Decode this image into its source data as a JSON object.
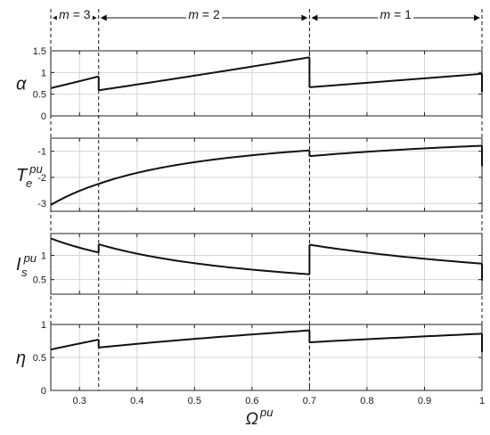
{
  "chart_data": [
    {
      "type": "line",
      "ylabel": "α",
      "xlim": [
        0.25,
        1.0
      ],
      "ylim": [
        0,
        1.5
      ],
      "yticks": [
        0,
        0.5,
        1,
        1.5
      ],
      "ytick_labels": [
        "0",
        "0.5",
        "1",
        "1.5"
      ],
      "grid": true,
      "segments": [
        {
          "x": [
            0.25,
            0.3333
          ],
          "y": [
            0.64,
            0.91
          ]
        },
        {
          "x": [
            0.3333,
            0.7
          ],
          "y": [
            0.59,
            1.35
          ]
        },
        {
          "x": [
            0.7,
            1.0
          ],
          "y": [
            0.66,
            0.97
          ]
        }
      ]
    },
    {
      "type": "line",
      "ylabel": "T",
      "ylabel_sub": "e",
      "ylabel_sup": "pu",
      "xlim": [
        0.25,
        1.0
      ],
      "ylim": [
        -3.3,
        -0.5
      ],
      "yticks": [
        -3,
        -2,
        -1
      ],
      "ytick_labels": [
        "-3",
        "-2",
        "-1"
      ],
      "grid": true,
      "segments": [
        {
          "x": [
            0.25,
            0.3333
          ],
          "y": [
            -3.06,
            -2.25
          ]
        },
        {
          "x": [
            0.3333,
            0.7
          ],
          "y": [
            -2.25,
            -0.97
          ]
        },
        {
          "x": [
            0.7,
            1.0
          ],
          "y": [
            -1.19,
            -0.79
          ]
        }
      ]
    },
    {
      "type": "line",
      "ylabel": "I",
      "ylabel_sub": "s",
      "ylabel_sup": "pu",
      "xlim": [
        0.25,
        1.0
      ],
      "ylim": [
        0.2,
        1.45
      ],
      "yticks": [
        0.5,
        1
      ],
      "ytick_labels": [
        "0.5",
        "1"
      ],
      "grid": true,
      "segments": [
        {
          "x": [
            0.25,
            0.3333
          ],
          "y": [
            1.35,
            1.06
          ]
        },
        {
          "x": [
            0.3333,
            0.7
          ],
          "y": [
            1.23,
            0.61
          ]
        },
        {
          "x": [
            0.7,
            1.0
          ],
          "y": [
            1.22,
            0.83
          ]
        }
      ]
    },
    {
      "type": "line",
      "ylabel": "η",
      "xlim": [
        0.25,
        1.0
      ],
      "ylim": [
        0,
        1.0
      ],
      "yticks": [
        0,
        0.5,
        1
      ],
      "ytick_labels": [
        "0",
        "0.5",
        "1"
      ],
      "xticks": [
        0.3,
        0.4,
        0.5,
        0.6,
        0.7,
        0.8,
        0.9,
        1
      ],
      "xtick_labels": [
        "0.3",
        "0.4",
        "0.5",
        "0.6",
        "0.7",
        "0.8",
        "0.9",
        "1"
      ],
      "xlabel": "Ω",
      "xlabel_sup": "pu",
      "grid": true,
      "segments": [
        {
          "x": [
            0.25,
            0.3333
          ],
          "y": [
            0.62,
            0.77
          ]
        },
        {
          "x": [
            0.3333,
            0.7
          ],
          "y": [
            0.65,
            0.91
          ]
        },
        {
          "x": [
            0.7,
            1.0
          ],
          "y": [
            0.73,
            0.86
          ]
        }
      ]
    }
  ],
  "regions": [
    {
      "label": "m = 3",
      "x_start": 0.25,
      "x_end": 0.3333
    },
    {
      "label": "m = 2",
      "x_start": 0.3333,
      "x_end": 0.7
    },
    {
      "label": "m = 1",
      "x_start": 0.7,
      "x_end": 1.0
    }
  ],
  "boundaries": [
    0.25,
    0.3333,
    0.7,
    1.0
  ],
  "colors": {
    "line": "#111111",
    "grid": "#d4d4d4",
    "axes": "#222222",
    "background": "#ffffff"
  }
}
